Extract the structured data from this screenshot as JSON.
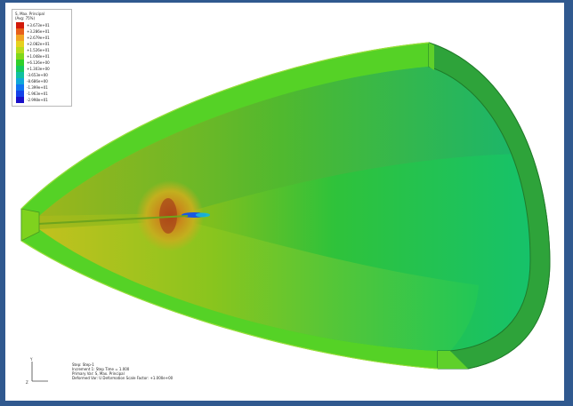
{
  "legend": {
    "title": "S, Max. Principal",
    "subtitle": "(Avg: 75%)",
    "entries": [
      {
        "label": "+3.673e+01",
        "color": "#d21a0a"
      },
      {
        "label": "+3.286e+01",
        "color": "#e7601a"
      },
      {
        "label": "+2.679e+01",
        "color": "#f0a422"
      },
      {
        "label": "+2.082e+01",
        "color": "#e6d11e"
      },
      {
        "label": "+1.526e+01",
        "color": "#b8db1c"
      },
      {
        "label": "+1.048e+01",
        "color": "#7fd81a"
      },
      {
        "label": "+6.126e+00",
        "color": "#2fd02a"
      },
      {
        "label": "+1.303e+00",
        "color": "#14c85e"
      },
      {
        "label": "-3.653e+00",
        "color": "#10c0a0"
      },
      {
        "label": "-8.686e+00",
        "color": "#10a8d8"
      },
      {
        "label": "-1.399e+01",
        "color": "#1074f0"
      },
      {
        "label": "-1.963e+01",
        "color": "#1442e8"
      },
      {
        "label": "-2.998e+01",
        "color": "#1a10c8"
      }
    ]
  },
  "info": {
    "line1": "Step: Step-1",
    "line2": "Increment 1: Step Time = 1.000",
    "line3": "Primary Var: S, Max. Principal",
    "line4": "Deformed Var: U   Deformation Scale Factor: +1.000e+00"
  },
  "colors": {
    "frame": "#30598f",
    "shell_outer": "#5ad424",
    "shell_inner": "#8fc21a",
    "rim": "#2fa43a"
  }
}
